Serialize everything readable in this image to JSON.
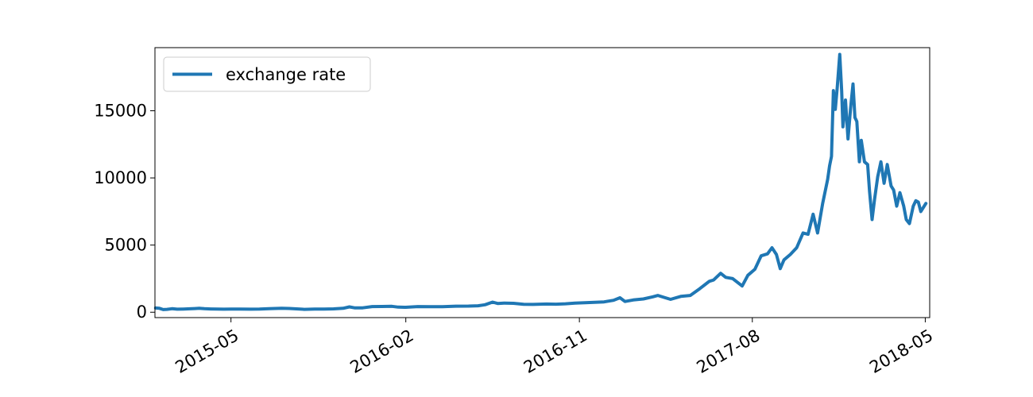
{
  "chart_data": {
    "type": "line",
    "title": "",
    "xlabel": "",
    "ylabel": "",
    "x_axis_type": "date",
    "xlim": [
      "2015-01-01",
      "2018-05-08"
    ],
    "ylim": [
      -400,
      19700
    ],
    "x_ticks": [
      "2015-05",
      "2016-02",
      "2016-11",
      "2017-08",
      "2018-05"
    ],
    "y_ticks": [
      0,
      5000,
      10000,
      15000
    ],
    "grid": false,
    "legend": {
      "position": "top-left",
      "entries": [
        "exchange rate"
      ]
    },
    "series": [
      {
        "name": "exchange rate",
        "color": "#1f77b4",
        "points": [
          [
            "2015-01-02",
            315
          ],
          [
            "2015-01-08",
            290
          ],
          [
            "2015-01-14",
            200
          ],
          [
            "2015-01-20",
            215
          ],
          [
            "2015-01-28",
            260
          ],
          [
            "2015-02-05",
            225
          ],
          [
            "2015-02-15",
            240
          ],
          [
            "2015-02-25",
            255
          ],
          [
            "2015-03-05",
            275
          ],
          [
            "2015-03-12",
            290
          ],
          [
            "2015-03-20",
            260
          ],
          [
            "2015-03-30",
            245
          ],
          [
            "2015-04-10",
            235
          ],
          [
            "2015-04-20",
            225
          ],
          [
            "2015-05-01",
            235
          ],
          [
            "2015-05-15",
            240
          ],
          [
            "2015-06-01",
            228
          ],
          [
            "2015-06-15",
            235
          ],
          [
            "2015-06-30",
            260
          ],
          [
            "2015-07-10",
            280
          ],
          [
            "2015-07-20",
            290
          ],
          [
            "2015-08-01",
            280
          ],
          [
            "2015-08-18",
            230
          ],
          [
            "2015-08-25",
            215
          ],
          [
            "2015-09-10",
            235
          ],
          [
            "2015-09-25",
            235
          ],
          [
            "2015-10-10",
            250
          ],
          [
            "2015-10-25",
            290
          ],
          [
            "2015-11-04",
            400
          ],
          [
            "2015-11-12",
            330
          ],
          [
            "2015-11-25",
            330
          ],
          [
            "2015-12-10",
            420
          ],
          [
            "2015-12-25",
            430
          ],
          [
            "2016-01-10",
            440
          ],
          [
            "2016-01-20",
            380
          ],
          [
            "2016-02-01",
            370
          ],
          [
            "2016-02-20",
            420
          ],
          [
            "2016-03-10",
            415
          ],
          [
            "2016-03-30",
            415
          ],
          [
            "2016-04-20",
            450
          ],
          [
            "2016-05-10",
            455
          ],
          [
            "2016-05-25",
            480
          ],
          [
            "2016-06-05",
            560
          ],
          [
            "2016-06-17",
            750
          ],
          [
            "2016-06-25",
            650
          ],
          [
            "2016-07-05",
            680
          ],
          [
            "2016-07-20",
            665
          ],
          [
            "2016-08-05",
            590
          ],
          [
            "2016-08-20",
            580
          ],
          [
            "2016-09-10",
            610
          ],
          [
            "2016-09-25",
            600
          ],
          [
            "2016-10-10",
            630
          ],
          [
            "2016-10-25",
            680
          ],
          [
            "2016-11-10",
            710
          ],
          [
            "2016-11-25",
            740
          ],
          [
            "2016-12-10",
            770
          ],
          [
            "2016-12-25",
            890
          ],
          [
            "2017-01-04",
            1080
          ],
          [
            "2017-01-12",
            800
          ],
          [
            "2017-01-25",
            910
          ],
          [
            "2017-02-10",
            990
          ],
          [
            "2017-02-25",
            1150
          ],
          [
            "2017-03-05",
            1250
          ],
          [
            "2017-03-15",
            1100
          ],
          [
            "2017-03-25",
            960
          ],
          [
            "2017-04-10",
            1180
          ],
          [
            "2017-04-25",
            1250
          ],
          [
            "2017-05-10",
            1750
          ],
          [
            "2017-05-25",
            2300
          ],
          [
            "2017-06-01",
            2400
          ],
          [
            "2017-06-12",
            2900
          ],
          [
            "2017-06-20",
            2600
          ],
          [
            "2017-07-01",
            2500
          ],
          [
            "2017-07-16",
            1950
          ],
          [
            "2017-07-25",
            2750
          ],
          [
            "2017-08-05",
            3200
          ],
          [
            "2017-08-15",
            4200
          ],
          [
            "2017-08-25",
            4350
          ],
          [
            "2017-09-01",
            4800
          ],
          [
            "2017-09-08",
            4300
          ],
          [
            "2017-09-14",
            3250
          ],
          [
            "2017-09-20",
            3900
          ],
          [
            "2017-09-30",
            4300
          ],
          [
            "2017-10-10",
            4800
          ],
          [
            "2017-10-20",
            5900
          ],
          [
            "2017-10-28",
            5800
          ],
          [
            "2017-11-05",
            7300
          ],
          [
            "2017-11-12",
            5900
          ],
          [
            "2017-11-20",
            8100
          ],
          [
            "2017-11-28",
            9900
          ],
          [
            "2017-12-01",
            10900
          ],
          [
            "2017-12-04",
            11600
          ],
          [
            "2017-12-07",
            16500
          ],
          [
            "2017-12-10",
            15100
          ],
          [
            "2017-12-13",
            16700
          ],
          [
            "2017-12-17",
            19200
          ],
          [
            "2017-12-20",
            16500
          ],
          [
            "2017-12-22",
            13800
          ],
          [
            "2017-12-26",
            15800
          ],
          [
            "2017-12-30",
            12900
          ],
          [
            "2018-01-03",
            15100
          ],
          [
            "2018-01-07",
            17000
          ],
          [
            "2018-01-10",
            14500
          ],
          [
            "2018-01-13",
            14200
          ],
          [
            "2018-01-17",
            11200
          ],
          [
            "2018-01-20",
            12800
          ],
          [
            "2018-01-25",
            11200
          ],
          [
            "2018-01-30",
            11000
          ],
          [
            "2018-02-02",
            9000
          ],
          [
            "2018-02-06",
            6900
          ],
          [
            "2018-02-10",
            8400
          ],
          [
            "2018-02-15",
            10100
          ],
          [
            "2018-02-20",
            11200
          ],
          [
            "2018-02-25",
            9600
          ],
          [
            "2018-03-02",
            11000
          ],
          [
            "2018-03-08",
            9400
          ],
          [
            "2018-03-12",
            9100
          ],
          [
            "2018-03-17",
            7900
          ],
          [
            "2018-03-22",
            8900
          ],
          [
            "2018-03-28",
            7900
          ],
          [
            "2018-04-01",
            6900
          ],
          [
            "2018-04-06",
            6600
          ],
          [
            "2018-04-12",
            7900
          ],
          [
            "2018-04-16",
            8300
          ],
          [
            "2018-04-20",
            8200
          ],
          [
            "2018-04-24",
            7500
          ],
          [
            "2018-04-28",
            7800
          ],
          [
            "2018-05-02",
            8100
          ]
        ]
      }
    ]
  }
}
